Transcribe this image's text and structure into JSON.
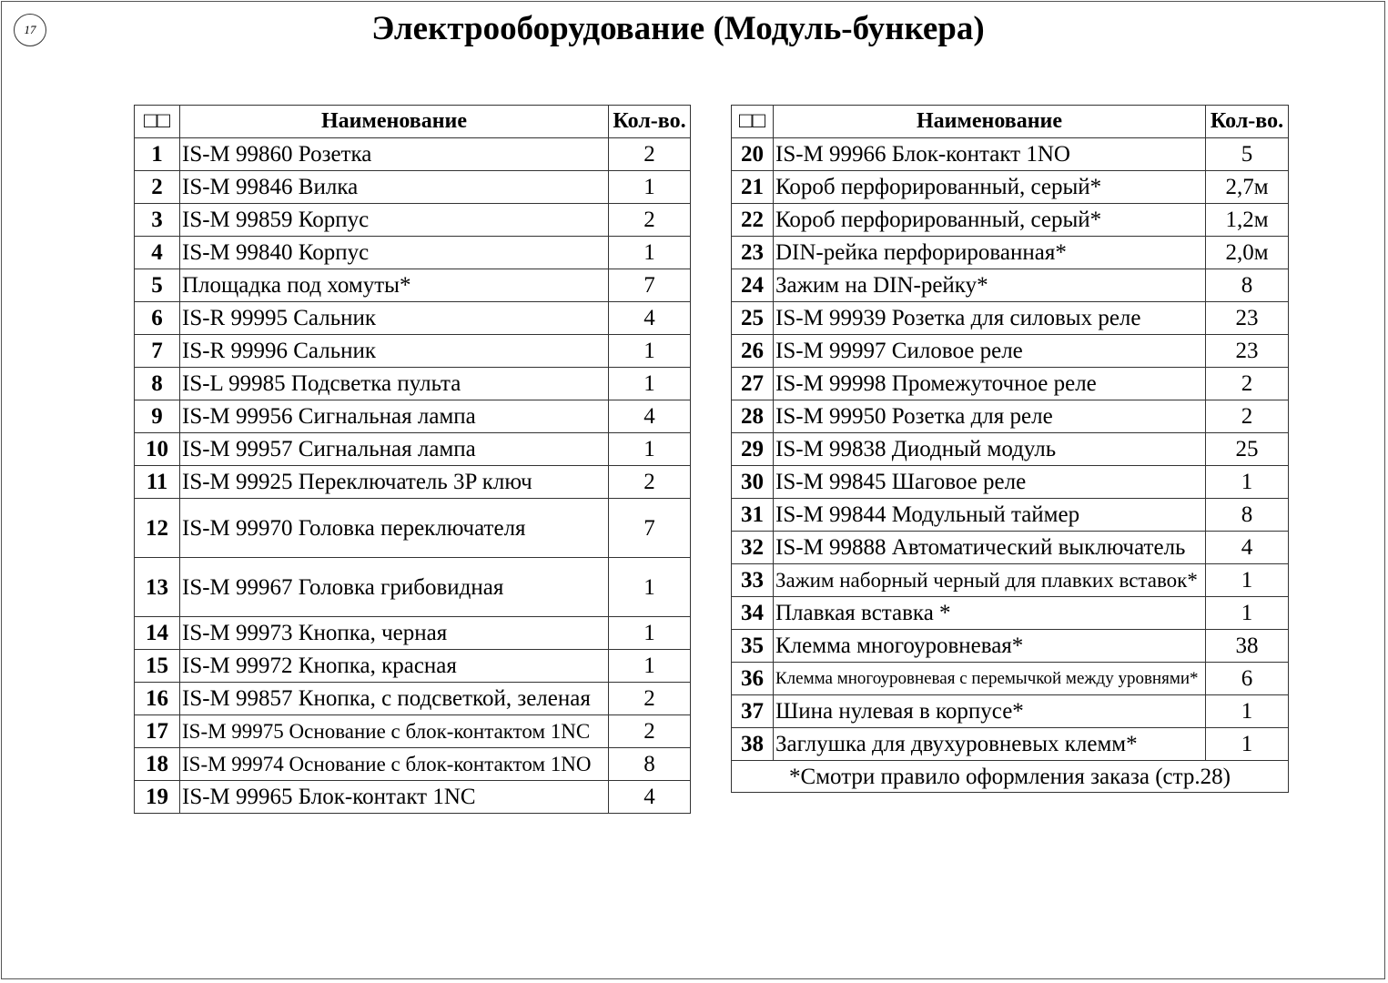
{
  "page_number": "17",
  "title": "Электрооборудование (Модуль-бункера)",
  "left_table": {
    "header": [
      "□□",
      "Наименование",
      "Кол-во."
    ],
    "rows": [
      [
        "1",
        "IS-M 99860 Розетка",
        "2"
      ],
      [
        "2",
        "IS-M 99846 Вилка",
        "1"
      ],
      [
        "3",
        "IS-M 99859 Корпус",
        "2"
      ],
      [
        "4",
        "IS-M 99840 Корпус",
        "1"
      ],
      [
        "5",
        "Площадка под хомуты*",
        "7"
      ],
      [
        "6",
        "IS-R 99995 Сальник",
        "4"
      ],
      [
        "7",
        "IS-R 99996 Сальник",
        "1"
      ],
      [
        "8",
        "IS-L 99985 Подсветка пульта",
        "1"
      ],
      [
        "9",
        "IS-M 99956 Сигнальная лампа",
        "4"
      ],
      [
        "10",
        "IS-M 99957 Сигнальная лампа",
        "1"
      ],
      [
        "11",
        "IS-M 99925 Переключатель 3P ключ",
        "2"
      ],
      [
        "12",
        "IS-M 99970 Головка переключателя",
        "7"
      ],
      [
        "13",
        "IS-M 99967 Головка грибовидная",
        "1"
      ],
      [
        "14",
        "IS-M 99973 Кнопка, черная",
        "1"
      ],
      [
        "15",
        "IS-M 99972 Кнопка, красная",
        "1"
      ],
      [
        "16",
        "IS-M 99857 Кнопка, с подсветкой, зеленая",
        "2"
      ],
      [
        "17",
        "IS-M 99975 Основание с блок-контактом 1NC",
        "2"
      ],
      [
        "18",
        "IS-M 99974 Основание с блок-контактом 1NO",
        "8"
      ],
      [
        "19",
        "IS-M 99965 Блок-контакт 1NC",
        "4"
      ]
    ]
  },
  "right_table": {
    "header": [
      "□□",
      "Наименование",
      "Кол-во."
    ],
    "rows": [
      [
        "20",
        "IS-M 99966 Блок-контакт 1NO",
        "5"
      ],
      [
        "21",
        "Короб перфорированный, серый*",
        "2,7м"
      ],
      [
        "22",
        "Короб перфорированный, серый*",
        "1,2м"
      ],
      [
        "23",
        "DIN-рейка перфорированная*",
        "2,0м"
      ],
      [
        "24",
        "Зажим на DIN-рейку*",
        "8"
      ],
      [
        "25",
        "IS-M 99939 Розетка для силовых реле",
        "23"
      ],
      [
        "26",
        "IS-M 99997 Силовое реле",
        "23"
      ],
      [
        "27",
        "IS-M 99998 Промежуточное реле",
        "2"
      ],
      [
        "28",
        "IS-M 99950 Розетка для реле",
        "2"
      ],
      [
        "29",
        "IS-M 99838 Диодный модуль",
        "25"
      ],
      [
        "30",
        "IS-M 99845 Шаговое реле",
        "1"
      ],
      [
        "31",
        "IS-M 99844 Модульный таймер",
        "8"
      ],
      [
        "32",
        "IS-M 99888 Автоматический выключатель",
        "4"
      ],
      [
        "33",
        "Зажим наборный черный для плавких вставок*",
        "1"
      ],
      [
        "34",
        "Плавкая вставка *",
        "1"
      ],
      [
        "35",
        "Клемма многоуровневая*",
        "38"
      ],
      [
        "36",
        "Клемма многоуровневая с перемычкой между уровнями*",
        "6"
      ],
      [
        "37",
        "Шина нулевая в корпусе*",
        "1"
      ],
      [
        "38",
        "Заглушка для двухуровневых клемм*",
        "1"
      ]
    ],
    "footer": "*Смотри правило оформления заказа (стр.28)"
  }
}
